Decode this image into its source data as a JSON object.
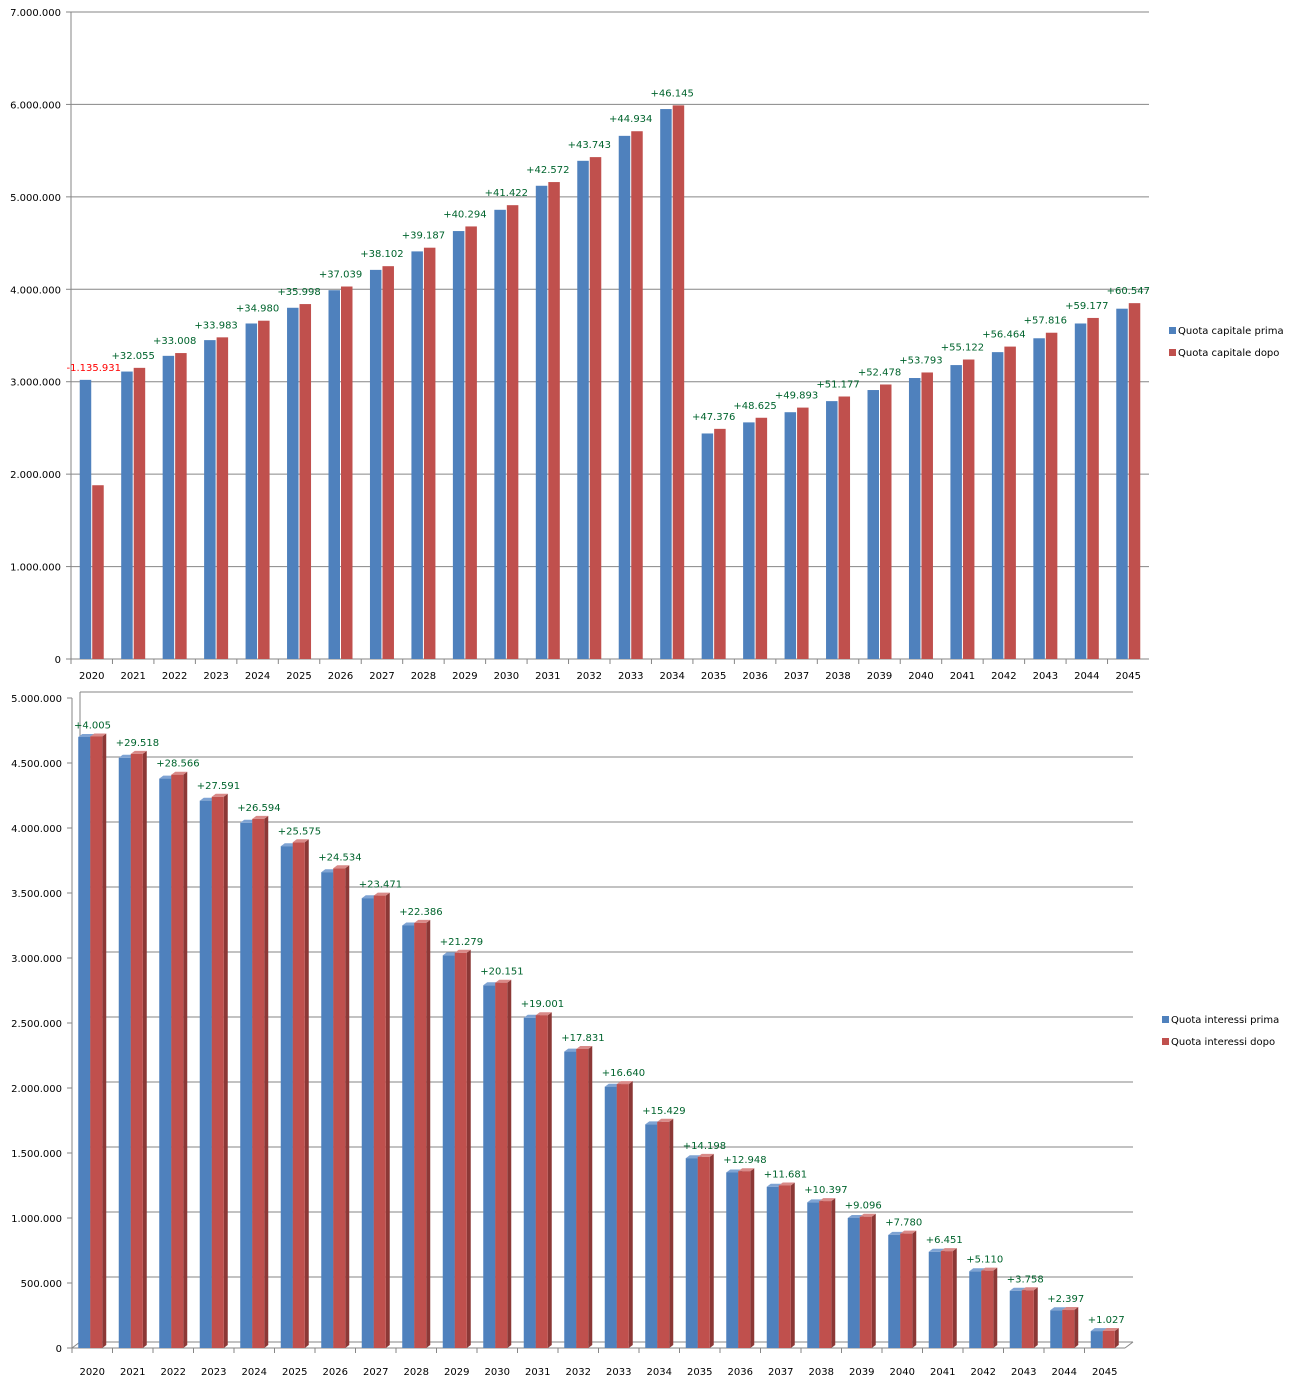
{
  "colors": {
    "prima": "#4f81bd",
    "prima_dark": "#385d8a",
    "prima_top": "#7ea3d3",
    "dopo": "#c0504d",
    "dopo_dark": "#8c3836",
    "dopo_top": "#d98a88",
    "positive_label": "#00642d",
    "negative_label": "#ff0000",
    "grid": "#868686"
  },
  "chart_data": [
    {
      "type": "bar",
      "title": "",
      "xlabel": "",
      "ylabel": "",
      "categories": [
        "2020",
        "2021",
        "2022",
        "2023",
        "2024",
        "2025",
        "2026",
        "2027",
        "2028",
        "2029",
        "2030",
        "2031",
        "2032",
        "2033",
        "2034",
        "2035",
        "2036",
        "2037",
        "2038",
        "2039",
        "2040",
        "2041",
        "2042",
        "2043",
        "2044",
        "2045"
      ],
      "ylim": [
        0,
        7000000
      ],
      "y_ticks": [
        0,
        1000000,
        2000000,
        3000000,
        4000000,
        5000000,
        6000000,
        7000000
      ],
      "y_tick_labels": [
        "0",
        "1.000.000",
        "2.000.000",
        "3.000.000",
        "4.000.000",
        "5.000.000",
        "6.000.000",
        "7.000.000"
      ],
      "grid": true,
      "legend_position": "right",
      "series": [
        {
          "name": "Quota capitale  prima",
          "values": [
            3020000,
            3110000,
            3280000,
            3450000,
            3630000,
            3800000,
            3990000,
            4210000,
            4410000,
            4630000,
            4860000,
            5120000,
            5390000,
            5660000,
            5950000,
            2440000,
            2560000,
            2670000,
            2790000,
            2910000,
            3040000,
            3180000,
            3320000,
            3470000,
            3630000,
            3790000
          ]
        },
        {
          "name": "Quota capitale  dopo",
          "values": [
            1880000,
            3150000,
            3310000,
            3480000,
            3660000,
            3840000,
            4030000,
            4250000,
            4450000,
            4680000,
            4910000,
            5160000,
            5430000,
            5710000,
            5990000,
            2490000,
            2610000,
            2720000,
            2840000,
            2970000,
            3100000,
            3240000,
            3380000,
            3530000,
            3690000,
            3850000
          ]
        }
      ],
      "data_labels": [
        "-1.135.931",
        "+32.055",
        "+33.008",
        "+33.983",
        "+34.980",
        "+35.998",
        "+37.039",
        "+38.102",
        "+39.187",
        "+40.294",
        "+41.422",
        "+42.572",
        "+43.743",
        "+44.934",
        "+46.145",
        "+47.376",
        "+48.625",
        "+49.893",
        "+51.177",
        "+52.478",
        "+53.793",
        "+55.122",
        "+56.464",
        "+57.816",
        "+59.177",
        "+60.547"
      ]
    },
    {
      "type": "bar",
      "title": "",
      "xlabel": "",
      "ylabel": "",
      "categories": [
        "2020",
        "2021",
        "2022",
        "2023",
        "2024",
        "2025",
        "2026",
        "2027",
        "2028",
        "2029",
        "2030",
        "2031",
        "2032",
        "2033",
        "2034",
        "2035",
        "2036",
        "2037",
        "2038",
        "2039",
        "2040",
        "2041",
        "2042",
        "2043",
        "2044",
        "2045"
      ],
      "ylim": [
        0,
        5000000
      ],
      "y_ticks": [
        0,
        500000,
        1000000,
        1500000,
        2000000,
        2500000,
        3000000,
        3500000,
        4000000,
        4500000,
        5000000
      ],
      "y_tick_labels": [
        "0",
        "500.000",
        "1.000.000",
        "1.500.000",
        "2.000.000",
        "2.500.000",
        "3.000.000",
        "3.500.000",
        "4.000.000",
        "4.500.000",
        "5.000.000"
      ],
      "grid": true,
      "legend_position": "right",
      "series": [
        {
          "name": "Quota interessi  prima",
          "values": [
            4700000,
            4540000,
            4380000,
            4210000,
            4040000,
            3860000,
            3660000,
            3460000,
            3250000,
            3020000,
            2790000,
            2540000,
            2280000,
            2010000,
            1720000,
            1460000,
            1350000,
            1240000,
            1120000,
            1000000,
            870000,
            740000,
            590000,
            440000,
            290000,
            130000
          ]
        },
        {
          "name": "Quota interessi  dopo",
          "values": [
            4704000,
            4570000,
            4410000,
            4240000,
            4070000,
            3890000,
            3690000,
            3480000,
            3270000,
            3040000,
            2810000,
            2560000,
            2300000,
            2030000,
            1740000,
            1470000,
            1360000,
            1250000,
            1130000,
            1010000,
            880000,
            745000,
            595000,
            444000,
            292000,
            131000
          ]
        }
      ],
      "data_labels": [
        "+4.005",
        "+29.518",
        "+28.566",
        "+27.591",
        "+26.594",
        "+25.575",
        "+24.534",
        "+23.471",
        "+22.386",
        "+21.279",
        "+20.151",
        "+19.001",
        "+17.831",
        "+16.640",
        "+15.429",
        "+14.198",
        "+12.948",
        "+11.681",
        "+10.397",
        "+9.096",
        "+7.780",
        "+6.451",
        "+5.110",
        "+3.758",
        "+2.397",
        "+1.027"
      ]
    }
  ]
}
